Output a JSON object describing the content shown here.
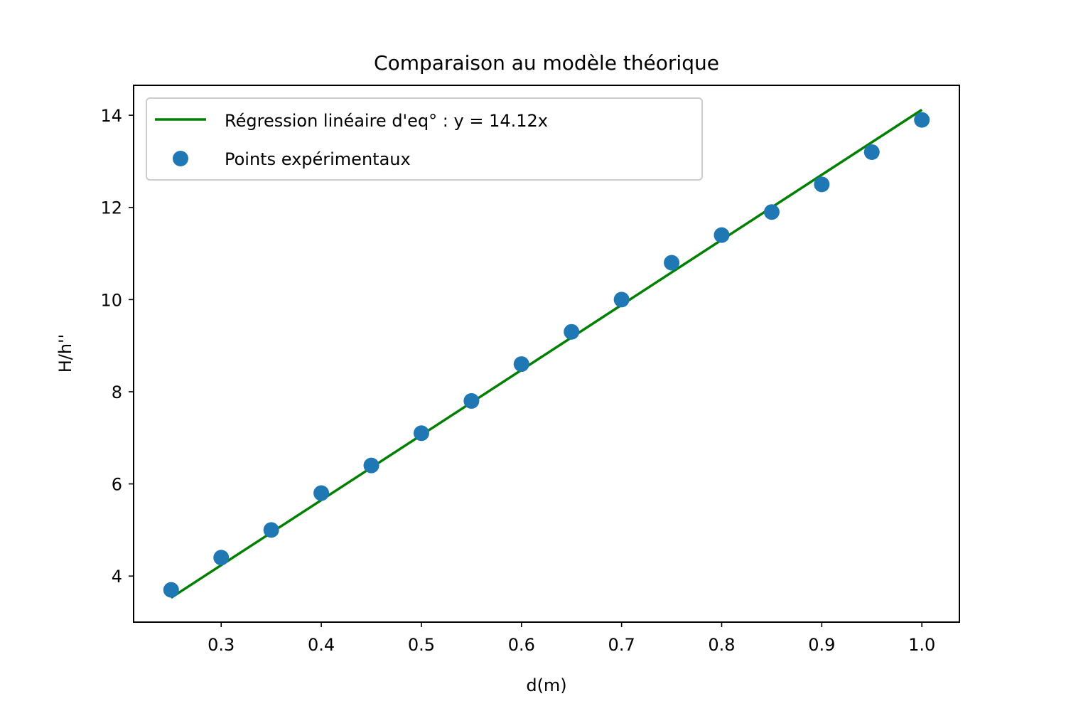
{
  "chart_data": {
    "type": "scatter",
    "title": "Comparaison au modèle théorique",
    "xlabel": "d(m)",
    "ylabel": "H/h''",
    "xlim": [
      0.2125,
      1.0375
    ],
    "ylim": [
      3.0,
      14.65
    ],
    "xticks": [
      "0.3",
      "0.4",
      "0.5",
      "0.6",
      "0.7",
      "0.8",
      "0.9",
      "1.0"
    ],
    "yticks": [
      "4",
      "6",
      "8",
      "10",
      "12",
      "14"
    ],
    "grid": false,
    "legend_position": "top-left",
    "series": [
      {
        "name": "Régression linéaire d'eq° : y = 14.12x",
        "kind": "line",
        "color": "#008000",
        "x": [
          0.25,
          1.0
        ],
        "y": [
          3.53,
          14.12
        ]
      },
      {
        "name": "Points expérimentaux",
        "kind": "scatter",
        "color": "#1f77b4",
        "x": [
          0.25,
          0.3,
          0.35,
          0.4,
          0.45,
          0.5,
          0.55,
          0.6,
          0.65,
          0.7,
          0.75,
          0.8,
          0.85,
          0.9,
          0.95,
          1.0
        ],
        "y": [
          3.7,
          4.4,
          5.0,
          5.8,
          6.4,
          7.1,
          7.8,
          8.6,
          9.3,
          10.0,
          10.8,
          11.4,
          11.9,
          12.5,
          13.2,
          13.9
        ]
      }
    ]
  }
}
